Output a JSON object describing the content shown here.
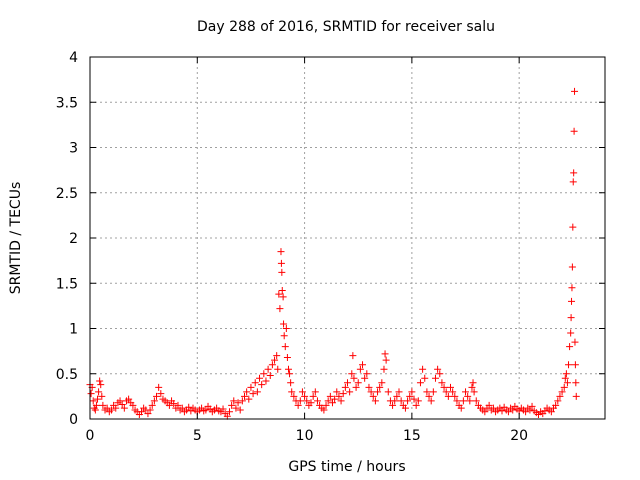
{
  "chart_data": {
    "type": "scatter",
    "title": "Day 288 of 2016, SRMTID for receiver salu",
    "xlabel": "GPS time / hours",
    "ylabel": "SRMTID / TECUs",
    "xlim": [
      0,
      24
    ],
    "ylim": [
      0,
      4
    ],
    "x_ticks": [
      0,
      5,
      10,
      15,
      20
    ],
    "x_tick_labels": [
      "0",
      "5",
      "10",
      "15",
      "20"
    ],
    "y_ticks": [
      0,
      0.5,
      1,
      1.5,
      2,
      2.5,
      3,
      3.5,
      4
    ],
    "y_tick_labels": [
      "0",
      "0.5",
      "1",
      "1.5",
      "2",
      "2.5",
      "3",
      "3.5",
      "4"
    ],
    "grid": true,
    "marker": "+",
    "color": "#ff0000",
    "series": [
      {
        "name": "SRMTID",
        "points": [
          [
            0.0,
            0.38
          ],
          [
            0.05,
            0.28
          ],
          [
            0.1,
            0.35
          ],
          [
            0.15,
            0.2
          ],
          [
            0.2,
            0.12
          ],
          [
            0.25,
            0.1
          ],
          [
            0.3,
            0.15
          ],
          [
            0.35,
            0.22
          ],
          [
            0.4,
            0.3
          ],
          [
            0.45,
            0.42
          ],
          [
            0.5,
            0.38
          ],
          [
            0.55,
            0.25
          ],
          [
            0.6,
            0.15
          ],
          [
            0.7,
            0.1
          ],
          [
            0.8,
            0.12
          ],
          [
            0.9,
            0.08
          ],
          [
            1.0,
            0.1
          ],
          [
            1.1,
            0.15
          ],
          [
            1.2,
            0.12
          ],
          [
            1.3,
            0.18
          ],
          [
            1.4,
            0.2
          ],
          [
            1.5,
            0.16
          ],
          [
            1.6,
            0.12
          ],
          [
            1.7,
            0.2
          ],
          [
            1.8,
            0.22
          ],
          [
            1.9,
            0.18
          ],
          [
            2.0,
            0.15
          ],
          [
            2.1,
            0.1
          ],
          [
            2.2,
            0.08
          ],
          [
            2.3,
            0.05
          ],
          [
            2.4,
            0.08
          ],
          [
            2.5,
            0.12
          ],
          [
            2.6,
            0.1
          ],
          [
            2.7,
            0.06
          ],
          [
            2.8,
            0.1
          ],
          [
            2.9,
            0.15
          ],
          [
            3.0,
            0.2
          ],
          [
            3.1,
            0.25
          ],
          [
            3.2,
            0.35
          ],
          [
            3.3,
            0.28
          ],
          [
            3.4,
            0.22
          ],
          [
            3.5,
            0.2
          ],
          [
            3.6,
            0.18
          ],
          [
            3.7,
            0.15
          ],
          [
            3.8,
            0.2
          ],
          [
            3.9,
            0.17
          ],
          [
            4.0,
            0.12
          ],
          [
            4.1,
            0.15
          ],
          [
            4.2,
            0.1
          ],
          [
            4.3,
            0.12
          ],
          [
            4.4,
            0.08
          ],
          [
            4.5,
            0.1
          ],
          [
            4.6,
            0.13
          ],
          [
            4.7,
            0.09
          ],
          [
            4.8,
            0.12
          ],
          [
            4.9,
            0.1
          ],
          [
            5.0,
            0.08
          ],
          [
            5.1,
            0.1
          ],
          [
            5.2,
            0.12
          ],
          [
            5.3,
            0.09
          ],
          [
            5.4,
            0.1
          ],
          [
            5.5,
            0.14
          ],
          [
            5.6,
            0.11
          ],
          [
            5.7,
            0.08
          ],
          [
            5.8,
            0.1
          ],
          [
            5.9,
            0.12
          ],
          [
            6.0,
            0.09
          ],
          [
            6.1,
            0.08
          ],
          [
            6.2,
            0.11
          ],
          [
            6.3,
            0.06
          ],
          [
            6.4,
            0.03
          ],
          [
            6.5,
            0.08
          ],
          [
            6.6,
            0.15
          ],
          [
            6.7,
            0.2
          ],
          [
            6.8,
            0.12
          ],
          [
            6.9,
            0.18
          ],
          [
            7.0,
            0.1
          ],
          [
            7.1,
            0.2
          ],
          [
            7.2,
            0.25
          ],
          [
            7.3,
            0.3
          ],
          [
            7.4,
            0.22
          ],
          [
            7.5,
            0.35
          ],
          [
            7.6,
            0.28
          ],
          [
            7.7,
            0.4
          ],
          [
            7.8,
            0.3
          ],
          [
            7.9,
            0.45
          ],
          [
            8.0,
            0.38
          ],
          [
            8.1,
            0.5
          ],
          [
            8.2,
            0.42
          ],
          [
            8.3,
            0.55
          ],
          [
            8.4,
            0.48
          ],
          [
            8.5,
            0.6
          ],
          [
            8.6,
            0.65
          ],
          [
            8.7,
            0.7
          ],
          [
            8.75,
            0.55
          ],
          [
            8.8,
            1.38
          ],
          [
            8.85,
            1.22
          ],
          [
            8.9,
            1.85
          ],
          [
            8.92,
            1.72
          ],
          [
            8.94,
            1.62
          ],
          [
            8.96,
            1.42
          ],
          [
            9.0,
            1.35
          ],
          [
            9.02,
            1.05
          ],
          [
            9.05,
            0.92
          ],
          [
            9.1,
            0.8
          ],
          [
            9.15,
            1.0
          ],
          [
            9.2,
            0.68
          ],
          [
            9.25,
            0.55
          ],
          [
            9.3,
            0.5
          ],
          [
            9.35,
            0.4
          ],
          [
            9.4,
            0.3
          ],
          [
            9.5,
            0.25
          ],
          [
            9.6,
            0.2
          ],
          [
            9.7,
            0.15
          ],
          [
            9.8,
            0.2
          ],
          [
            9.9,
            0.3
          ],
          [
            10.0,
            0.25
          ],
          [
            10.1,
            0.2
          ],
          [
            10.2,
            0.15
          ],
          [
            10.3,
            0.18
          ],
          [
            10.4,
            0.25
          ],
          [
            10.5,
            0.3
          ],
          [
            10.6,
            0.2
          ],
          [
            10.7,
            0.15
          ],
          [
            10.8,
            0.12
          ],
          [
            10.9,
            0.1
          ],
          [
            11.0,
            0.15
          ],
          [
            11.1,
            0.2
          ],
          [
            11.2,
            0.25
          ],
          [
            11.3,
            0.18
          ],
          [
            11.4,
            0.22
          ],
          [
            11.5,
            0.3
          ],
          [
            11.6,
            0.25
          ],
          [
            11.7,
            0.2
          ],
          [
            11.8,
            0.28
          ],
          [
            11.9,
            0.35
          ],
          [
            12.0,
            0.4
          ],
          [
            12.1,
            0.3
          ],
          [
            12.2,
            0.5
          ],
          [
            12.25,
            0.7
          ],
          [
            12.3,
            0.45
          ],
          [
            12.4,
            0.35
          ],
          [
            12.5,
            0.4
          ],
          [
            12.6,
            0.55
          ],
          [
            12.7,
            0.6
          ],
          [
            12.8,
            0.45
          ],
          [
            12.9,
            0.5
          ],
          [
            13.0,
            0.35
          ],
          [
            13.1,
            0.3
          ],
          [
            13.2,
            0.25
          ],
          [
            13.3,
            0.2
          ],
          [
            13.4,
            0.3
          ],
          [
            13.5,
            0.35
          ],
          [
            13.6,
            0.4
          ],
          [
            13.7,
            0.55
          ],
          [
            13.75,
            0.72
          ],
          [
            13.8,
            0.65
          ],
          [
            13.9,
            0.3
          ],
          [
            14.0,
            0.2
          ],
          [
            14.1,
            0.15
          ],
          [
            14.2,
            0.2
          ],
          [
            14.3,
            0.25
          ],
          [
            14.4,
            0.3
          ],
          [
            14.5,
            0.2
          ],
          [
            14.6,
            0.15
          ],
          [
            14.7,
            0.12
          ],
          [
            14.8,
            0.2
          ],
          [
            14.9,
            0.25
          ],
          [
            15.0,
            0.3
          ],
          [
            15.1,
            0.22
          ],
          [
            15.2,
            0.15
          ],
          [
            15.3,
            0.2
          ],
          [
            15.4,
            0.4
          ],
          [
            15.5,
            0.55
          ],
          [
            15.6,
            0.45
          ],
          [
            15.7,
            0.3
          ],
          [
            15.8,
            0.25
          ],
          [
            15.9,
            0.2
          ],
          [
            16.0,
            0.3
          ],
          [
            16.1,
            0.45
          ],
          [
            16.2,
            0.55
          ],
          [
            16.3,
            0.5
          ],
          [
            16.4,
            0.4
          ],
          [
            16.5,
            0.35
          ],
          [
            16.6,
            0.3
          ],
          [
            16.7,
            0.25
          ],
          [
            16.8,
            0.35
          ],
          [
            16.9,
            0.3
          ],
          [
            17.0,
            0.25
          ],
          [
            17.1,
            0.2
          ],
          [
            17.2,
            0.15
          ],
          [
            17.3,
            0.12
          ],
          [
            17.4,
            0.2
          ],
          [
            17.5,
            0.3
          ],
          [
            17.6,
            0.25
          ],
          [
            17.7,
            0.2
          ],
          [
            17.8,
            0.35
          ],
          [
            17.85,
            0.4
          ],
          [
            17.9,
            0.3
          ],
          [
            18.0,
            0.2
          ],
          [
            18.1,
            0.15
          ],
          [
            18.2,
            0.12
          ],
          [
            18.3,
            0.1
          ],
          [
            18.4,
            0.08
          ],
          [
            18.5,
            0.12
          ],
          [
            18.6,
            0.15
          ],
          [
            18.7,
            0.1
          ],
          [
            18.8,
            0.12
          ],
          [
            18.9,
            0.08
          ],
          [
            19.0,
            0.1
          ],
          [
            19.1,
            0.12
          ],
          [
            19.2,
            0.09
          ],
          [
            19.3,
            0.13
          ],
          [
            19.4,
            0.1
          ],
          [
            19.5,
            0.08
          ],
          [
            19.6,
            0.12
          ],
          [
            19.7,
            0.1
          ],
          [
            19.8,
            0.14
          ],
          [
            19.9,
            0.11
          ],
          [
            20.0,
            0.09
          ],
          [
            20.1,
            0.12
          ],
          [
            20.2,
            0.1
          ],
          [
            20.3,
            0.08
          ],
          [
            20.4,
            0.12
          ],
          [
            20.5,
            0.1
          ],
          [
            20.6,
            0.14
          ],
          [
            20.7,
            0.09
          ],
          [
            20.8,
            0.07
          ],
          [
            20.9,
            0.05
          ],
          [
            21.0,
            0.08
          ],
          [
            21.1,
            0.06
          ],
          [
            21.2,
            0.09
          ],
          [
            21.3,
            0.12
          ],
          [
            21.4,
            0.1
          ],
          [
            21.5,
            0.08
          ],
          [
            21.6,
            0.12
          ],
          [
            21.7,
            0.15
          ],
          [
            21.8,
            0.2
          ],
          [
            21.9,
            0.25
          ],
          [
            22.0,
            0.3
          ],
          [
            22.1,
            0.35
          ],
          [
            22.15,
            0.45
          ],
          [
            22.2,
            0.5
          ],
          [
            22.25,
            0.4
          ],
          [
            22.3,
            0.6
          ],
          [
            22.35,
            0.8
          ],
          [
            22.4,
            0.95
          ],
          [
            22.42,
            1.12
          ],
          [
            22.44,
            1.3
          ],
          [
            22.46,
            1.45
          ],
          [
            22.48,
            1.68
          ],
          [
            22.5,
            2.12
          ],
          [
            22.52,
            2.62
          ],
          [
            22.54,
            2.72
          ],
          [
            22.56,
            3.18
          ],
          [
            22.58,
            3.62
          ],
          [
            22.6,
            0.85
          ],
          [
            22.62,
            0.6
          ],
          [
            22.64,
            0.4
          ],
          [
            22.66,
            0.25
          ]
        ]
      }
    ]
  }
}
